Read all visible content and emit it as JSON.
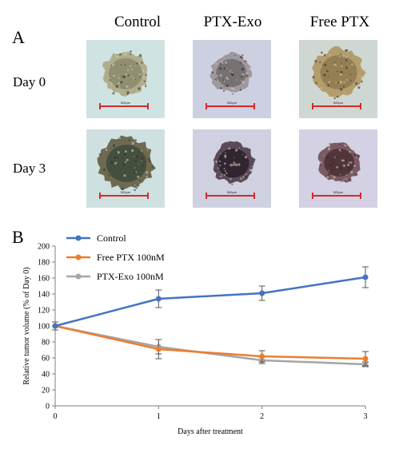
{
  "panels": {
    "a_label": "A",
    "b_label": "B"
  },
  "panel_a": {
    "columns": [
      "Control",
      "PTX-Exo",
      "Free PTX"
    ],
    "rows": [
      "Day 0",
      "Day 3"
    ],
    "scale_bar_label": "500μm",
    "scale_bar_color": "#d42a2a"
  },
  "chart_data": {
    "type": "line",
    "xlabel": "Days after treatment",
    "ylabel": "Relative tumor volume (% of Day 0)",
    "x": [
      0,
      1,
      2,
      3
    ],
    "xlim": [
      0,
      3
    ],
    "ylim": [
      0,
      200
    ],
    "yticks": [
      0,
      20,
      40,
      60,
      80,
      100,
      120,
      140,
      160,
      180,
      200
    ],
    "xticks": [
      0,
      1,
      2,
      3
    ],
    "legend_position": "top-left",
    "series": [
      {
        "name": "Control",
        "color": "#4472c4",
        "values": [
          100,
          134,
          141,
          161
        ],
        "errors": [
          5,
          11,
          9,
          13
        ]
      },
      {
        "name": "Free PTX 100nM",
        "color": "#ed7d31",
        "values": [
          100,
          71,
          62,
          59
        ],
        "errors": [
          5,
          12,
          7,
          9
        ]
      },
      {
        "name": "PTX-Exo 100nM",
        "color": "#a5a5a5",
        "values": [
          100,
          74,
          57,
          52
        ],
        "errors": [
          5,
          9,
          4,
          3
        ]
      }
    ]
  }
}
